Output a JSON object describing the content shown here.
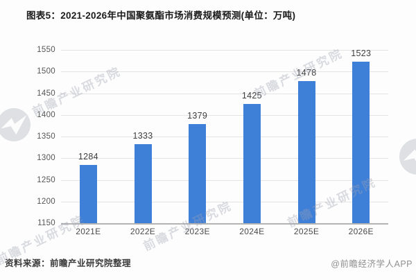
{
  "title": "图表5：2021-2026年中国聚氨酯市场消费规模预测(单位：万吨)",
  "chart_data": {
    "type": "bar",
    "title": "图表5：2021-2026年中国聚氨酯市场消费规模预测(单位：万吨)",
    "categories": [
      "2021E",
      "2022E",
      "2023E",
      "2024E",
      "2025E",
      "2026E"
    ],
    "values": [
      1284,
      1333,
      1379,
      1425,
      1478,
      1523
    ],
    "xlabel": "",
    "ylabel": "",
    "unit": "万吨",
    "ylim": [
      1150,
      1550
    ],
    "yticks": [
      1150,
      1200,
      1250,
      1300,
      1350,
      1400,
      1450,
      1500,
      1550
    ],
    "grid": true,
    "legend_position": "none",
    "bar_color": "#3E7FD8"
  },
  "footer": {
    "source": "资料来源：前瞻产业研究院整理",
    "credit": "@前瞻经济学人APP"
  },
  "watermark": {
    "text": "前瞻产业研究院"
  },
  "colors": {
    "bar": "#3E7FD8",
    "gridline": "#e4e4e4",
    "axis_line": "#b3b3b3",
    "title_text": "#1b1b1b",
    "tick_text": "#555555",
    "value_label_text": "#3e3e3e",
    "source_text": "#3a3a3a",
    "credit_text": "#8f8f8f"
  }
}
